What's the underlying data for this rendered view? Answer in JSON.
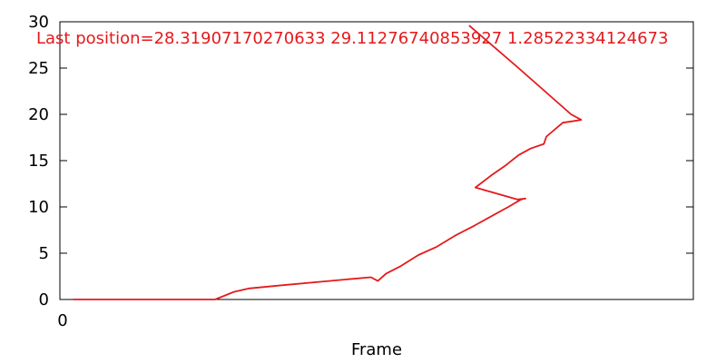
{
  "chart_data": {
    "type": "line",
    "title": "",
    "xlabel": "Frame",
    "ylabel": "",
    "xlim": [
      0,
      100
    ],
    "ylim": [
      0,
      30
    ],
    "x_tick_labels": [
      "0"
    ],
    "y_ticks": [
      0,
      5,
      10,
      15,
      20,
      25,
      30
    ],
    "grid": false,
    "legend": "none",
    "annotation": "Last position=28.31907170270633 29.11276740853927 1.28522334124673",
    "series": [
      {
        "color": "#e41a1c",
        "points": [
          [
            2.1,
            0.0
          ],
          [
            24.5,
            0.0
          ],
          [
            27.4,
            0.8
          ],
          [
            29.9,
            1.2
          ],
          [
            34.5,
            1.5
          ],
          [
            42.5,
            2.0
          ],
          [
            49.1,
            2.4
          ],
          [
            50.2,
            2.0
          ],
          [
            51.5,
            2.8
          ],
          [
            53.8,
            3.6
          ],
          [
            56.6,
            4.8
          ],
          [
            59.5,
            5.7
          ],
          [
            62.4,
            6.9
          ],
          [
            65.5,
            8.0
          ],
          [
            68.4,
            9.1
          ],
          [
            70.8,
            10.0
          ],
          [
            72.8,
            10.8
          ],
          [
            73.5,
            10.9
          ],
          [
            72.2,
            10.8
          ],
          [
            65.6,
            12.1
          ],
          [
            68.1,
            13.4
          ],
          [
            70.4,
            14.5
          ],
          [
            72.4,
            15.6
          ],
          [
            74.3,
            16.3
          ],
          [
            76.4,
            16.8
          ],
          [
            76.8,
            17.6
          ],
          [
            79.4,
            19.1
          ],
          [
            82.3,
            19.4
          ],
          [
            80.7,
            20.0
          ],
          [
            72.4,
            25.0
          ],
          [
            64.6,
            29.6
          ]
        ]
      }
    ]
  }
}
